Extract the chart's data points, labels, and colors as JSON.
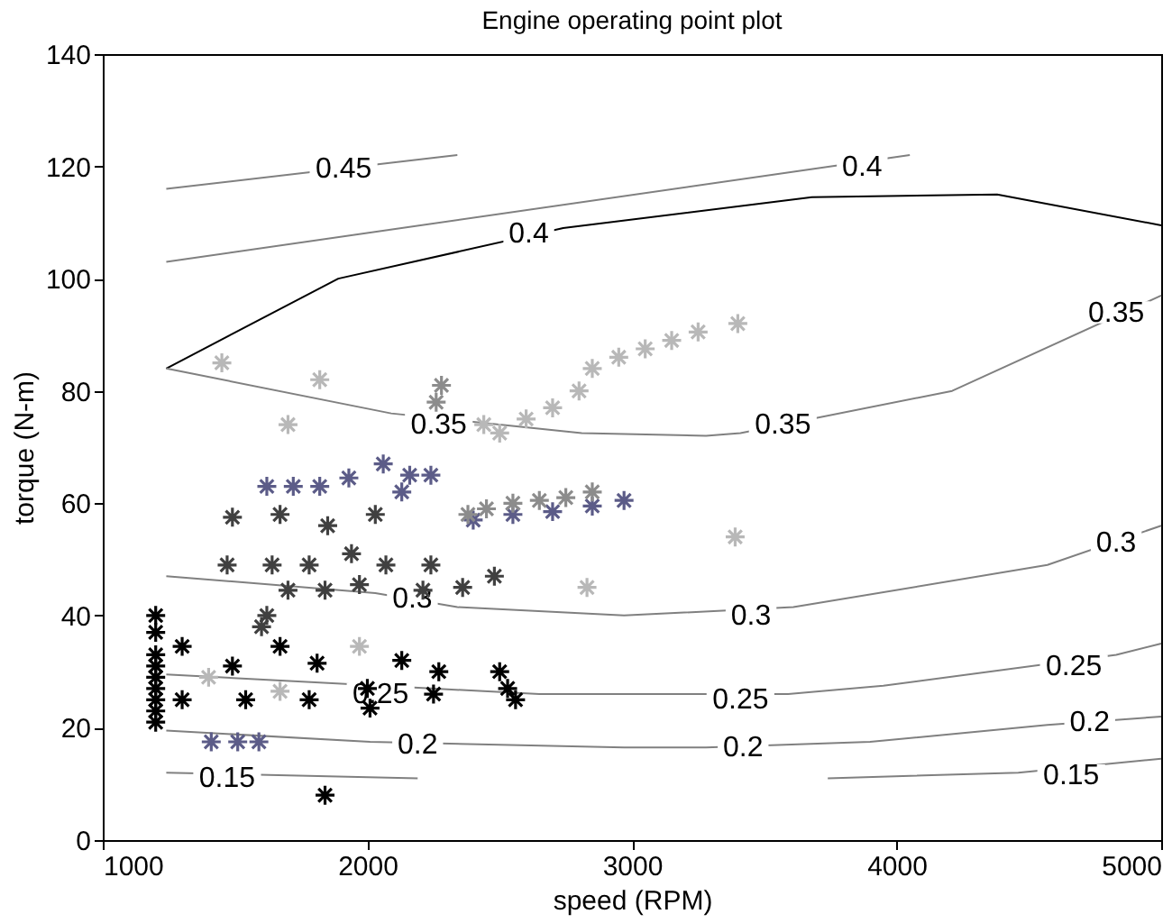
{
  "chart_data": {
    "type": "scatter",
    "title": "Engine operating point plot",
    "xlabel": "speed (RPM)",
    "ylabel": "torque (N-m)",
    "xlim": [
      1000,
      5000
    ],
    "ylim": [
      0,
      140
    ],
    "xticks": [
      1000,
      2000,
      3000,
      4000,
      5000
    ],
    "yticks": [
      0,
      20,
      40,
      60,
      80,
      100,
      120,
      140
    ],
    "grid": false,
    "series": [
      {
        "type": "line",
        "color": "#808080",
        "x": [
          1240,
          2340
        ],
        "values": [
          116,
          122
        ]
      },
      {
        "type": "line",
        "color": "#808080",
        "x": [
          1240,
          4050
        ],
        "values": [
          103,
          122
        ]
      },
      {
        "type": "line",
        "color": "#000000",
        "x": [
          1240,
          1890,
          2740,
          3680,
          4380,
          5000
        ],
        "values": [
          84,
          100,
          109,
          114.5,
          115,
          109.5
        ]
      },
      {
        "type": "line",
        "color": "#808080",
        "x": [
          1240,
          2090,
          2810,
          3280,
          3410,
          4210,
          5000
        ],
        "values": [
          84,
          76,
          72.5,
          72,
          72.5,
          80,
          97
        ]
      },
      {
        "type": "line",
        "color": "#808080",
        "x": [
          1240,
          2030,
          2340,
          2970,
          3610,
          4570,
          5000
        ],
        "values": [
          47,
          44,
          41.5,
          40,
          41.5,
          49,
          56
        ]
      },
      {
        "type": "line",
        "color": "#808080",
        "x": [
          1240,
          2650,
          3590,
          3950,
          4830,
          5000
        ],
        "values": [
          29.5,
          26,
          26,
          27.5,
          33,
          35
        ]
      },
      {
        "type": "line",
        "color": "#808080",
        "x": [
          1240,
          2010,
          2970,
          3280,
          3900,
          4570,
          5000
        ],
        "values": [
          19.5,
          17.5,
          16.5,
          16.5,
          17.5,
          20.5,
          22
        ]
      },
      {
        "type": "line",
        "color": "#808080",
        "x": [
          1240,
          2190
        ],
        "values": [
          12,
          11
        ]
      },
      {
        "type": "line",
        "color": "#808080",
        "x": [
          3740,
          4460,
          5000
        ],
        "values": [
          11,
          12,
          14.5
        ]
      },
      {
        "marker": "cross",
        "color": "#000000",
        "x": [
          1200,
          1200,
          1200,
          1200,
          1200,
          1200,
          1200,
          1200,
          1200,
          1300,
          1300,
          1490,
          1540,
          1670,
          1780,
          1810,
          2010,
          2130,
          2250,
          1840,
          2000,
          2270,
          2500,
          2530,
          2560
        ],
        "values": [
          40,
          37,
          33,
          31,
          29,
          27,
          25,
          23,
          21,
          34.5,
          25,
          31,
          25,
          34.5,
          25,
          31.5,
          23.5,
          32,
          26,
          8,
          27,
          30,
          30,
          27,
          25
        ]
      },
      {
        "marker": "cross",
        "color": "#404040",
        "x": [
          1490,
          1670,
          1850,
          2030,
          1470,
          1640,
          1780,
          1940,
          2070,
          2240,
          1700,
          1840,
          1970,
          2210,
          2360,
          1620,
          1600,
          2480
        ],
        "values": [
          57.5,
          58,
          56,
          58,
          49,
          49,
          49,
          51,
          49,
          49,
          44.5,
          44.5,
          45.5,
          44.5,
          45,
          40,
          38,
          47
        ]
      },
      {
        "marker": "cross",
        "color": "#5c5c88",
        "x": [
          1620,
          1720,
          1820,
          1930,
          2060,
          2160,
          2240,
          2130,
          1410,
          1510,
          1590,
          2400,
          2550,
          2700,
          2850,
          2970
        ],
        "values": [
          63,
          63,
          63,
          64.5,
          67,
          65,
          65,
          62,
          17.5,
          17.5,
          17.5,
          57,
          58,
          58.5,
          59.5,
          60.5
        ]
      },
      {
        "marker": "cross",
        "color": "#8c8c8c",
        "x": [
          2380,
          2450,
          2550,
          2650,
          2750,
          2850,
          2280,
          2260
        ],
        "values": [
          58,
          59,
          60,
          60.5,
          61,
          62,
          81,
          78
        ]
      },
      {
        "marker": "cross",
        "color": "#b8b8b8",
        "x": [
          1450,
          1820,
          1700,
          2440,
          2500,
          2600,
          2700,
          2800,
          2850,
          2950,
          3050,
          3150,
          3250,
          3400,
          3390,
          2830,
          1970,
          1400,
          1670
        ],
        "values": [
          85,
          82,
          74,
          74,
          72.5,
          75,
          77,
          80,
          84,
          86,
          87.5,
          89,
          90.5,
          92,
          54,
          45,
          34.5,
          29,
          26.5
        ]
      }
    ],
    "annotations": [
      {
        "text": "0.45",
        "x": 1910,
        "y": 119.6
      },
      {
        "text": "0.4",
        "x": 2610,
        "y": 108
      },
      {
        "text": "0.4",
        "x": 3870,
        "y": 120
      },
      {
        "text": "0.35",
        "x": 2270,
        "y": 74
      },
      {
        "text": "0.35",
        "x": 3570,
        "y": 74
      },
      {
        "text": "0.35",
        "x": 4830,
        "y": 94
      },
      {
        "text": "0.3",
        "x": 2170,
        "y": 43
      },
      {
        "text": "0.3",
        "x": 3450,
        "y": 40
      },
      {
        "text": "0.3",
        "x": 4830,
        "y": 53
      },
      {
        "text": "0.25",
        "x": 2050,
        "y": 26
      },
      {
        "text": "0.25",
        "x": 3410,
        "y": 25
      },
      {
        "text": "0.25",
        "x": 4670,
        "y": 31
      },
      {
        "text": "0.2",
        "x": 2190,
        "y": 17
      },
      {
        "text": "0.2",
        "x": 3420,
        "y": 16.5
      },
      {
        "text": "0.2",
        "x": 4730,
        "y": 21
      },
      {
        "text": "0.15",
        "x": 1470,
        "y": 11
      },
      {
        "text": "0.15",
        "x": 4660,
        "y": 11.5
      }
    ]
  }
}
